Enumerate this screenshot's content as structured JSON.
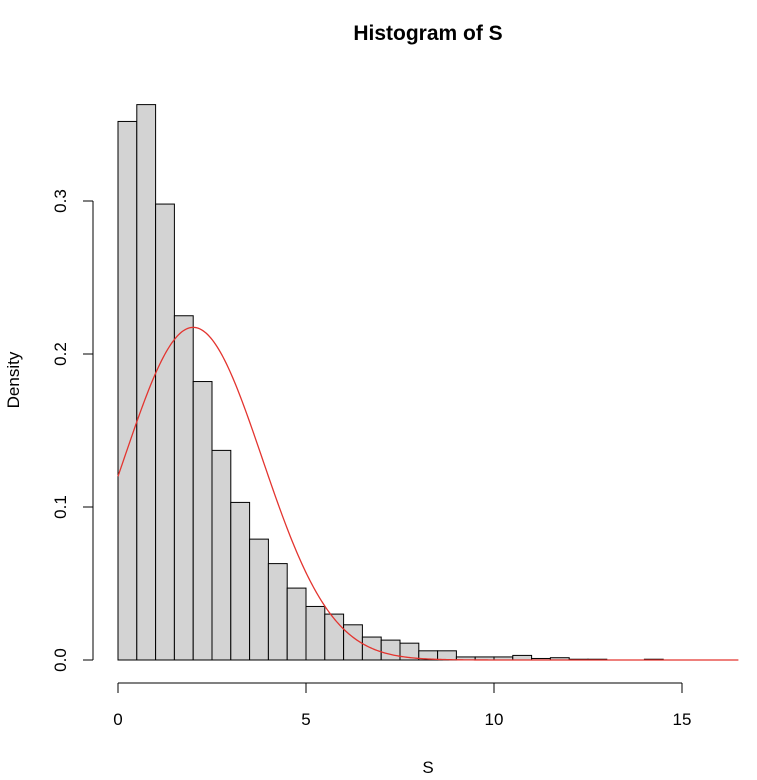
{
  "chart_data": {
    "type": "bar",
    "title": "Histogram of S",
    "xlabel": "S",
    "ylabel": "Density",
    "xlim": [
      0,
      16.5
    ],
    "ylim": [
      0,
      0.365
    ],
    "x_ticks": [
      0,
      5,
      10,
      15
    ],
    "x_tick_labels": [
      "0",
      "5",
      "10",
      "15"
    ],
    "y_ticks": [
      0.0,
      0.1,
      0.2,
      0.3
    ],
    "y_tick_labels": [
      "0.0",
      "0.1",
      "0.2",
      "0.3"
    ],
    "bin_width": 0.5,
    "bin_edges_start": 0,
    "values": [
      0.352,
      0.363,
      0.298,
      0.225,
      0.182,
      0.137,
      0.103,
      0.079,
      0.063,
      0.047,
      0.035,
      0.03,
      0.023,
      0.015,
      0.013,
      0.011,
      0.006,
      0.006,
      0.002,
      0.002,
      0.002,
      0.003,
      0.001,
      0.0015,
      0.0005,
      0.0005,
      0.0,
      0.0,
      0.0005,
      0.0,
      0.0,
      0.0,
      0.0
    ],
    "curve": {
      "type": "line",
      "color": "#e3342f",
      "mean": 2.0,
      "sd": 1.835,
      "x_range": [
        0,
        16.5
      ]
    },
    "bar_fill": "#d3d3d3",
    "bar_stroke": "#000000",
    "grid": false,
    "legend": "none"
  }
}
